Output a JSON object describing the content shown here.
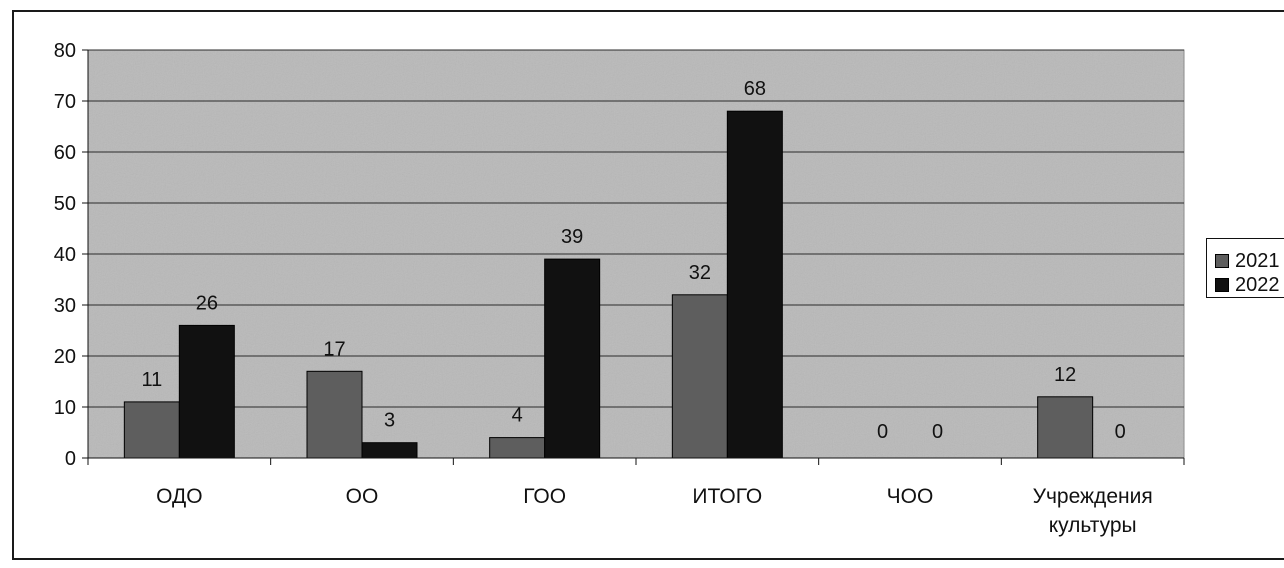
{
  "chart_data": {
    "type": "bar",
    "categories": [
      "ОДО",
      "ОО",
      "ГОО",
      "ИТОГО",
      "ЧОО",
      "Учреждения культуры"
    ],
    "category_lines": [
      [
        "ОДО"
      ],
      [
        "ОО"
      ],
      [
        "ГОО"
      ],
      [
        "ИТОГО"
      ],
      [
        "ЧОО"
      ],
      [
        "Учреждения",
        "культуры"
      ]
    ],
    "series": [
      {
        "name": "2021",
        "values": [
          11,
          17,
          4,
          32,
          0,
          12
        ],
        "color": "#5e5e5e"
      },
      {
        "name": "2022",
        "values": [
          26,
          3,
          39,
          68,
          0,
          0
        ],
        "color": "#111111"
      }
    ],
    "data_labels": [
      [
        "11",
        "17",
        "4",
        "32",
        "0",
        "12"
      ],
      [
        "26",
        "3",
        "39",
        "68",
        "0",
        "0"
      ]
    ],
    "yticks": [
      0,
      10,
      20,
      30,
      40,
      50,
      60,
      70,
      80
    ],
    "ylim": [
      0,
      80
    ],
    "grid": true,
    "legend": "right",
    "plot_background": "#b9b9b9",
    "title": "",
    "xlabel": "",
    "ylabel": ""
  }
}
